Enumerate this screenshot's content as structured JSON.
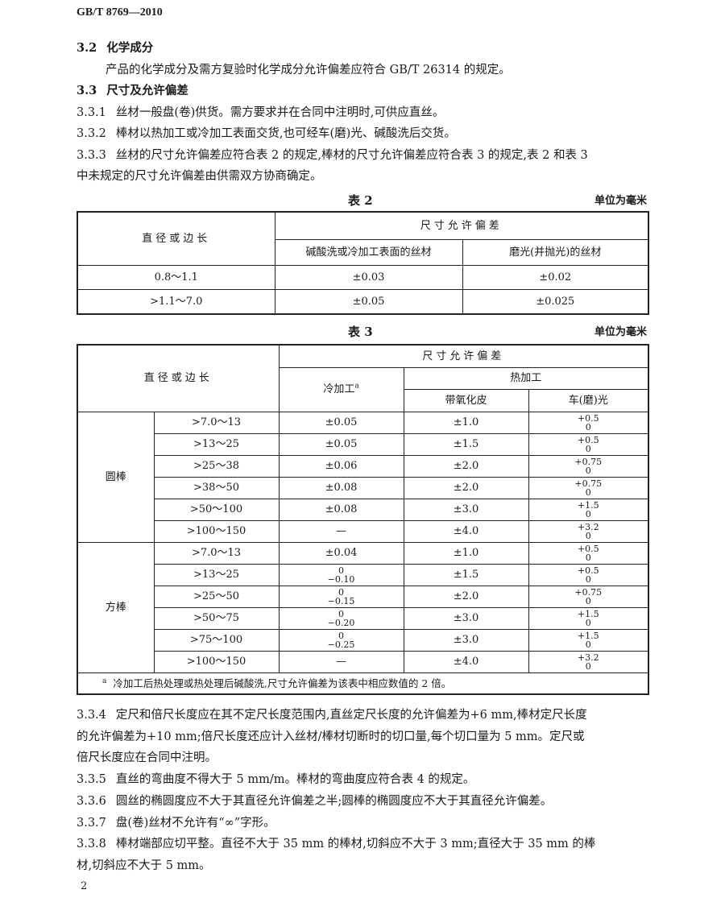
{
  "header": {
    "standard_no": "GB/T 8769—2010"
  },
  "sections": [
    {
      "num": "3.2",
      "text": "化学成分",
      "bold": true
    },
    {
      "num": "",
      "text": "产品的化学成分及需方复验时化学成分允许偏差应符合 GB/T 26314 的规定。"
    },
    {
      "num": "3.3",
      "text": "尺寸及允许偏差",
      "bold": true
    },
    {
      "num": "3.3.1",
      "text": "丝材一般盘(卷)供货。需方要求并在合同中注明时,可供应直丝。"
    },
    {
      "num": "3.3.2",
      "text": "棒材以热加工或冷加工表面交货,也可经车(磨)光、碱酸洗后交货。"
    },
    {
      "num": "3.3.3",
      "text": "丝材的尺寸允许偏差应符合表 2 的规定,棒材的尺寸允许偏差应符合表 3 的规定,表 2 和表 3"
    },
    {
      "num": "",
      "text": "中未规定的尺寸允许偏差由供需双方协商确定。"
    }
  ],
  "table2": {
    "caption": "表 2",
    "unit": "单位为毫米",
    "col_main": "直径或边长",
    "col_group": "尺寸允许偏差",
    "col_a": "碱酸洗或冷加工表面的丝材",
    "col_b": "磨光(并抛光)的丝材",
    "rows": [
      {
        "size": "0.8～1.1",
        "a": "±0.03",
        "b": "±0.02"
      },
      {
        "size": ">1.1～7.0",
        "a": "±0.05",
        "b": "±0.025"
      }
    ]
  },
  "table3": {
    "caption": "表 3",
    "unit": "单位为毫米",
    "col_main": "直径或边长",
    "col_group": "尺寸允许偏差",
    "col_cold": "冷加工",
    "col_cold_mark": "a",
    "col_hot": "热加工",
    "col_scale": "带氧化皮",
    "col_turned": "车(磨)光",
    "groups": [
      {
        "name": "圆棒",
        "rows": [
          {
            "size": ">7.0～13",
            "cold": "±0.05",
            "scale": "±1.0",
            "turned_up": "+0.5",
            "turned_low": "0"
          },
          {
            "size": ">13～25",
            "cold": "±0.05",
            "scale": "±1.5",
            "turned_up": "+0.5",
            "turned_low": "0"
          },
          {
            "size": ">25～38",
            "cold": "±0.06",
            "scale": "±2.0",
            "turned_up": "+0.75",
            "turned_low": "0"
          },
          {
            "size": ">38～50",
            "cold": "±0.08",
            "scale": "±2.0",
            "turned_up": "+0.75",
            "turned_low": "0"
          },
          {
            "size": ">50～100",
            "cold": "±0.08",
            "scale": "±3.0",
            "turned_up": "+1.5",
            "turned_low": "0"
          },
          {
            "size": ">100～150",
            "cold": "—",
            "scale": "±4.0",
            "turned_up": "+3.2",
            "turned_low": "0"
          }
        ]
      },
      {
        "name": "方棒",
        "rows": [
          {
            "size": ">7.0～13",
            "cold": "±0.04",
            "scale": "±1.0",
            "turned_up": "+0.5",
            "turned_low": "0"
          },
          {
            "size": ">13～25",
            "cold_up": "0",
            "cold_low": "−0.10",
            "scale": "±1.5",
            "turned_up": "+0.5",
            "turned_low": "0"
          },
          {
            "size": ">25～50",
            "cold_up": "0",
            "cold_low": "−0.15",
            "scale": "±2.0",
            "turned_up": "+0.75",
            "turned_low": "0"
          },
          {
            "size": ">50～75",
            "cold_up": "0",
            "cold_low": "−0.20",
            "scale": "±3.0",
            "turned_up": "+1.5",
            "turned_low": "0"
          },
          {
            "size": ">75～100",
            "cold_up": "0",
            "cold_low": "−0.25",
            "scale": "±3.0",
            "turned_up": "+1.5",
            "turned_low": "0"
          },
          {
            "size": ">100～150",
            "cold": "—",
            "scale": "±4.0",
            "turned_up": "+3.2",
            "turned_low": "0"
          }
        ]
      }
    ],
    "footnote_mark": "a",
    "footnote": "冷加工后热处理或热处理后碱酸洗,尺寸允许偏差为该表中相应数值的 2 倍。"
  },
  "after": [
    {
      "num": "3.3.4",
      "text": "定尺和倍尺长度应在其不定尺长度范围内,直丝定尺长度的允许偏差为+6 mm,棒材定尺长度"
    },
    {
      "num": "",
      "text": "的允许偏差为+10 mm;倍尺长度还应计入丝材/棒材切断时的切口量,每个切口量为 5 mm。定尺或"
    },
    {
      "num": "",
      "text": "倍尺长度应在合同中注明。"
    },
    {
      "num": "3.3.5",
      "text": "直丝的弯曲度不得大于 5 mm/m。棒材的弯曲度应符合表 4 的规定。"
    },
    {
      "num": "3.3.6",
      "text": "圆丝的椭圆度应不大于其直径允许偏差之半;圆棒的椭圆度应不大于其直径允许偏差。"
    },
    {
      "num": "3.3.7",
      "text": "盘(卷)丝材不允许有“∞”字形。"
    },
    {
      "num": "3.3.8",
      "text": "棒材端部应切平整。直径不大于 35 mm 的棒材,切斜应不大于 3 mm;直径大于 35 mm 的棒"
    },
    {
      "num": "",
      "text": "材,切斜应不大于 5 mm。"
    }
  ],
  "page_number": "2"
}
